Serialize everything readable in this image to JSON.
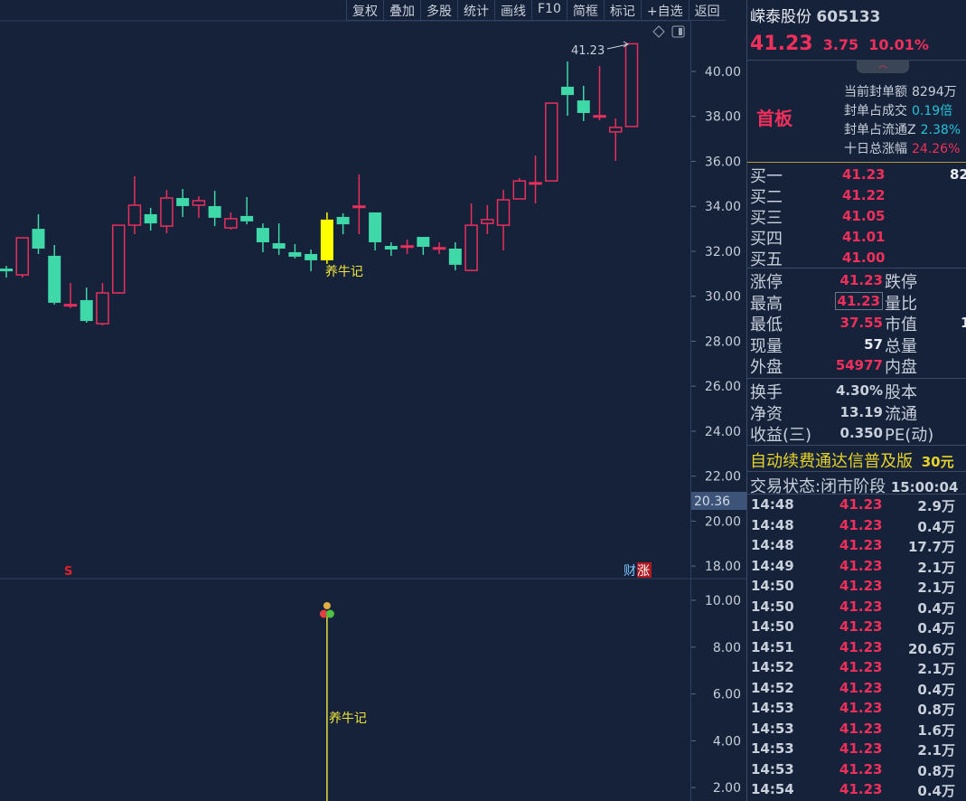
{
  "toolbar": [
    "复权",
    "叠加",
    "多股",
    "统计",
    "画线",
    "F10",
    "简框",
    "标记",
    "+自选",
    "返回"
  ],
  "stock": {
    "name": "嵘泰股份",
    "code": "605133",
    "price": "41.23",
    "change": "3.75",
    "pct": "10.01%"
  },
  "limit_info": {
    "badge": "首板",
    "rows": [
      {
        "label": "当前封单额",
        "value": "8294万",
        "color": "#c8d0dc"
      },
      {
        "label": "封单占成交",
        "value": "0.19倍",
        "color": "#22c3d8"
      },
      {
        "label": "封单占流通Z",
        "value": "2.38%",
        "color": "#22c3d8"
      },
      {
        "label": "十日总涨幅",
        "value": "24.26%",
        "color": "#f0305a"
      }
    ]
  },
  "orderbook": [
    {
      "label": "买一",
      "price": "41.23",
      "vol": "82"
    },
    {
      "label": "买二",
      "price": "41.22",
      "vol": ""
    },
    {
      "label": "买三",
      "price": "41.05",
      "vol": ""
    },
    {
      "label": "买四",
      "price": "41.01",
      "vol": ""
    },
    {
      "label": "买五",
      "price": "41.00",
      "vol": ""
    }
  ],
  "stats1": [
    {
      "l1": "涨停",
      "v1": "41.23",
      "c1": "#f0305a",
      "l2": "跌停",
      "v2": ""
    },
    {
      "l1": "最高",
      "v1": "41.23",
      "c1": "#f0305a",
      "l2": "量比",
      "v2": ""
    },
    {
      "l1": "最低",
      "v1": "37.55",
      "c1": "#f0305a",
      "l2": "市值",
      "v2": "1"
    },
    {
      "l1": "现量",
      "v1": "57",
      "c1": "#e8ecf2",
      "l2": "总量",
      "v2": ""
    },
    {
      "l1": "外盘",
      "v1": "54977",
      "c1": "#f0305a",
      "l2": "内盘",
      "v2": ""
    }
  ],
  "stats2": [
    {
      "l1": "换手",
      "v1": "4.30%",
      "l2": "股本"
    },
    {
      "l1": "净资",
      "v1": "13.19",
      "l2": "流通"
    },
    {
      "l1": "收益(三)",
      "v1": "0.350",
      "l2": "PE(动)"
    }
  ],
  "ad": {
    "text": "自动续费通达信普及版",
    "price": "30元"
  },
  "status": {
    "label": "交易状态:",
    "phase": "闭市阶段",
    "time": "15:00:04"
  },
  "trades": [
    {
      "t": "14:48",
      "p": "41.23",
      "v": "2.9万"
    },
    {
      "t": "14:48",
      "p": "41.23",
      "v": "0.4万"
    },
    {
      "t": "14:48",
      "p": "41.23",
      "v": "17.7万"
    },
    {
      "t": "14:49",
      "p": "41.23",
      "v": "2.1万"
    },
    {
      "t": "14:50",
      "p": "41.23",
      "v": "2.1万"
    },
    {
      "t": "14:50",
      "p": "41.23",
      "v": "0.4万"
    },
    {
      "t": "14:50",
      "p": "41.23",
      "v": "0.4万"
    },
    {
      "t": "14:51",
      "p": "41.23",
      "v": "20.6万"
    },
    {
      "t": "14:52",
      "p": "41.23",
      "v": "2.1万"
    },
    {
      "t": "14:52",
      "p": "41.23",
      "v": "0.4万"
    },
    {
      "t": "14:53",
      "p": "41.23",
      "v": "0.8万"
    },
    {
      "t": "14:53",
      "p": "41.23",
      "v": "1.6万"
    },
    {
      "t": "14:53",
      "p": "41.23",
      "v": "2.1万"
    },
    {
      "t": "14:53",
      "p": "41.23",
      "v": "0.8万"
    },
    {
      "t": "14:54",
      "p": "41.23",
      "v": "0.4万"
    }
  ],
  "chart_data": {
    "type": "candlestick",
    "price_axis": {
      "ticks": [
        "40.00",
        "38.00",
        "36.00",
        "34.00",
        "32.00",
        "30.00",
        "28.00",
        "26.00",
        "24.00",
        "22.00",
        "20.00",
        "18.00"
      ],
      "range": [
        17.6,
        41.8
      ]
    },
    "cursor_price": "20.36",
    "high_label": "41.23",
    "signal_label": "养牛记",
    "markers": {
      "s": "S",
      "cai": "财",
      "zhang": "涨"
    },
    "colors": {
      "up": "#e8305c",
      "down": "#3fd8a8",
      "signal": "#ffff00",
      "bg": "#16213a"
    },
    "signal_index": 20,
    "ohlc": [
      [
        31.23,
        31.35,
        30.83,
        31.11
      ],
      [
        30.95,
        32.6,
        30.83,
        32.6
      ],
      [
        33.0,
        33.65,
        31.88,
        32.12
      ],
      [
        31.8,
        32.28,
        29.63,
        29.71
      ],
      [
        29.63,
        30.59,
        29.47,
        29.63
      ],
      [
        29.83,
        30.39,
        28.82,
        28.9
      ],
      [
        28.78,
        30.59,
        28.7,
        30.15
      ],
      [
        30.15,
        33.16,
        30.11,
        33.16
      ],
      [
        33.16,
        35.34,
        32.76,
        34.05
      ],
      [
        33.65,
        33.93,
        32.92,
        33.24
      ],
      [
        33.12,
        34.73,
        32.8,
        34.37
      ],
      [
        34.37,
        34.77,
        33.53,
        34.01
      ],
      [
        34.05,
        34.45,
        33.49,
        34.25
      ],
      [
        34.01,
        34.69,
        33.12,
        33.49
      ],
      [
        33.04,
        33.73,
        32.96,
        33.45
      ],
      [
        33.57,
        34.41,
        33.2,
        33.33
      ],
      [
        33.04,
        33.24,
        31.96,
        32.4
      ],
      [
        32.36,
        33.24,
        31.84,
        32.12
      ],
      [
        31.96,
        32.32,
        31.68,
        31.76
      ],
      [
        31.88,
        32.08,
        31.11,
        31.6
      ],
      [
        31.6,
        33.73,
        31.44,
        33.41
      ],
      [
        33.53,
        33.69,
        32.76,
        33.2
      ],
      [
        34.01,
        35.42,
        32.76,
        34.01
      ],
      [
        33.73,
        33.73,
        32.04,
        32.4
      ],
      [
        32.24,
        32.4,
        31.8,
        32.08
      ],
      [
        32.24,
        32.52,
        31.88,
        32.24
      ],
      [
        32.64,
        32.64,
        31.84,
        32.2
      ],
      [
        32.16,
        32.4,
        31.88,
        32.16
      ],
      [
        32.12,
        32.4,
        31.15,
        31.4
      ],
      [
        31.15,
        34.13,
        31.15,
        33.16
      ],
      [
        33.24,
        34.05,
        32.76,
        33.41
      ],
      [
        33.16,
        34.73,
        32.04,
        34.29
      ],
      [
        34.33,
        35.26,
        34.33,
        35.13
      ],
      [
        35.01,
        36.26,
        34.13,
        35.05
      ],
      [
        35.13,
        38.59,
        35.13,
        38.59
      ],
      [
        39.32,
        40.44,
        38.03,
        38.95
      ],
      [
        38.71,
        39.36,
        37.79,
        38.15
      ],
      [
        38.03,
        40.24,
        37.83,
        38.03
      ],
      [
        37.31,
        37.91,
        36.02,
        37.51
      ],
      [
        37.55,
        41.23,
        37.55,
        41.23
      ]
    ],
    "indicator_axis": {
      "ticks": [
        "10.00",
        "8.00",
        "6.00",
        "4.00",
        "2.00"
      ]
    }
  }
}
